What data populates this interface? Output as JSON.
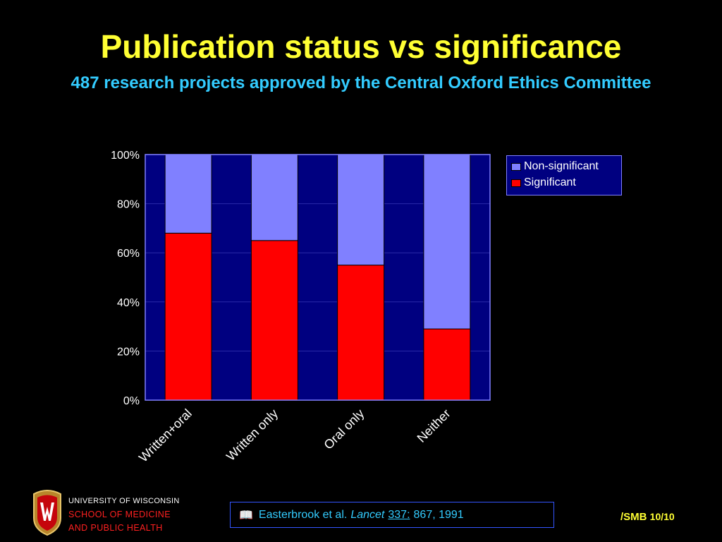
{
  "slide": {
    "title": "Publication status vs significance",
    "subtitle": "487 research projects approved by the Central Oxford Ethics Committee"
  },
  "chart_data": {
    "type": "bar",
    "stacked": true,
    "categories": [
      "Written+oral",
      "Written only",
      "Oral only",
      "Neither"
    ],
    "series": [
      {
        "name": "Significant",
        "values": [
          68,
          65,
          55,
          29
        ],
        "color": "#ff0000"
      },
      {
        "name": "Non-significant",
        "values": [
          32,
          35,
          45,
          71
        ],
        "color": "#8080ff"
      }
    ],
    "ylim": [
      0,
      100
    ],
    "yticks": [
      "0%",
      "20%",
      "40%",
      "60%",
      "80%",
      "100%"
    ],
    "grid": true,
    "legend_position": "right",
    "legend_entries": [
      "Non-significant",
      "Significant"
    ],
    "plot_background": "#000080"
  },
  "footer": {
    "university": "UNIVERSITY OF WISCONSIN",
    "school_line1": "SCHOOL OF MEDICINE",
    "school_line2": "AND PUBLIC HEALTH",
    "citation_icon": "book-icon",
    "citation_authors": "Easterbrook et al.",
    "citation_journal": "Lancet",
    "citation_volume": "337:",
    "citation_pages": "867, 1991",
    "author_tag": "/SMB",
    "page_number": "10/10"
  }
}
